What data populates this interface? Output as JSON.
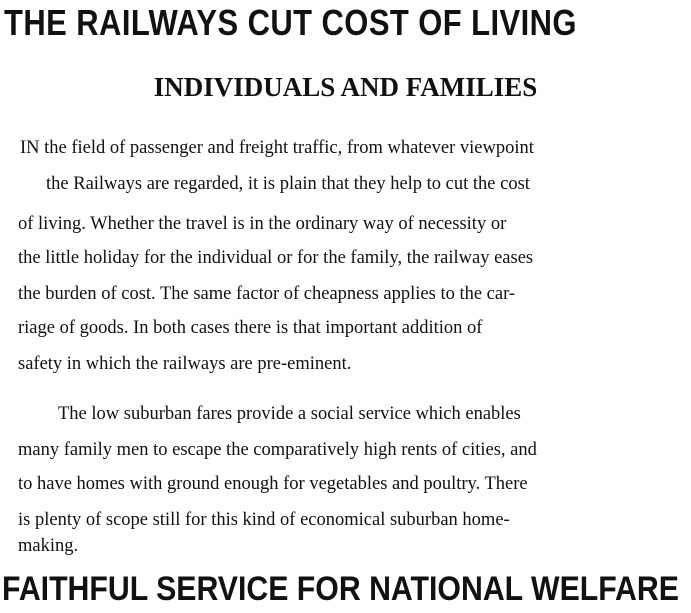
{
  "title": "THE RAILWAYS CUT COST OF LIVING",
  "subtitle": "INDIVIDUALS AND FAMILIES",
  "paragraph1": [
    "IN the field of passenger and freight traffic, from whatever viewpoint",
    "the Railways are regarded, it is plain that they help to cut the cost",
    "of living.  Whether the travel is in the ordinary way of necessity or",
    "the little holiday for the individual or for the family, the railway eases",
    "the burden of cost.  The same factor of cheapness applies to the car-",
    "riage of goods.  In both cases  there is that  important  addition  of",
    "safety in which the railways are pre-eminent."
  ],
  "paragraph2": [
    "The low suburban fares provide a social service which enables",
    "many family men to escape the comparatively high rents of cities, and",
    "to have homes with ground enough for vegetables and poultry.  There",
    "is plenty of scope still for this kind of economical suburban home-",
    "making."
  ],
  "footer": "FAITHFUL SERVICE FOR NATIONAL WELFARE"
}
